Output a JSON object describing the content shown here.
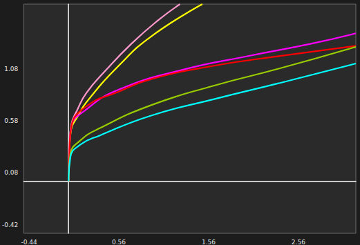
{
  "chart_data": {
    "type": "line",
    "xlim": [
      -0.5,
      3.2
    ],
    "ylim": [
      -0.5,
      1.7
    ],
    "xticks": [
      -0.44,
      0.56,
      1.56,
      2.56
    ],
    "yticks": [
      -0.42,
      0.08,
      0.58,
      1.08
    ],
    "grid": false,
    "series": [
      {
        "color": "#ff99cc",
        "x": [
          0,
          0.01,
          0.03,
          0.1,
          0.2,
          0.42,
          0.7,
          0.99,
          1.24
        ],
        "values": [
          0,
          0.33,
          0.54,
          0.69,
          0.85,
          1.07,
          1.32,
          1.54,
          1.7
        ]
      },
      {
        "color": "#ffff00",
        "x": [
          0,
          0.01,
          0.03,
          0.1,
          0.2,
          0.56,
          0.92,
          1.49
        ],
        "values": [
          0,
          0.3,
          0.5,
          0.62,
          0.76,
          1.11,
          1.39,
          1.7
        ]
      },
      {
        "color": "#ff00ff",
        "x": [
          0,
          0.01,
          0.03,
          0.2,
          0.56,
          1.27,
          1.99,
          2.7,
          3.2
        ],
        "values": [
          0,
          0.3,
          0.52,
          0.69,
          0.88,
          1.07,
          1.2,
          1.32,
          1.42
        ]
      },
      {
        "color": "#ff0000",
        "x": [
          0,
          0.01,
          0.03,
          0.2,
          0.56,
          0.92,
          1.63,
          2.34,
          3.2
        ],
        "values": [
          0,
          0.3,
          0.52,
          0.72,
          0.86,
          0.98,
          1.11,
          1.2,
          1.3
        ]
      },
      {
        "color": "#99cc00",
        "x": [
          0,
          0.02,
          0.13,
          0.35,
          0.92,
          1.63,
          2.34,
          3.2
        ],
        "values": [
          0,
          0.26,
          0.39,
          0.51,
          0.73,
          0.92,
          1.08,
          1.29
        ]
      },
      {
        "color": "#00ffff",
        "x": [
          0,
          0.02,
          0.13,
          0.35,
          0.92,
          1.63,
          2.34,
          3.2
        ],
        "values": [
          0,
          0.23,
          0.35,
          0.44,
          0.63,
          0.79,
          0.94,
          1.13
        ]
      }
    ]
  }
}
